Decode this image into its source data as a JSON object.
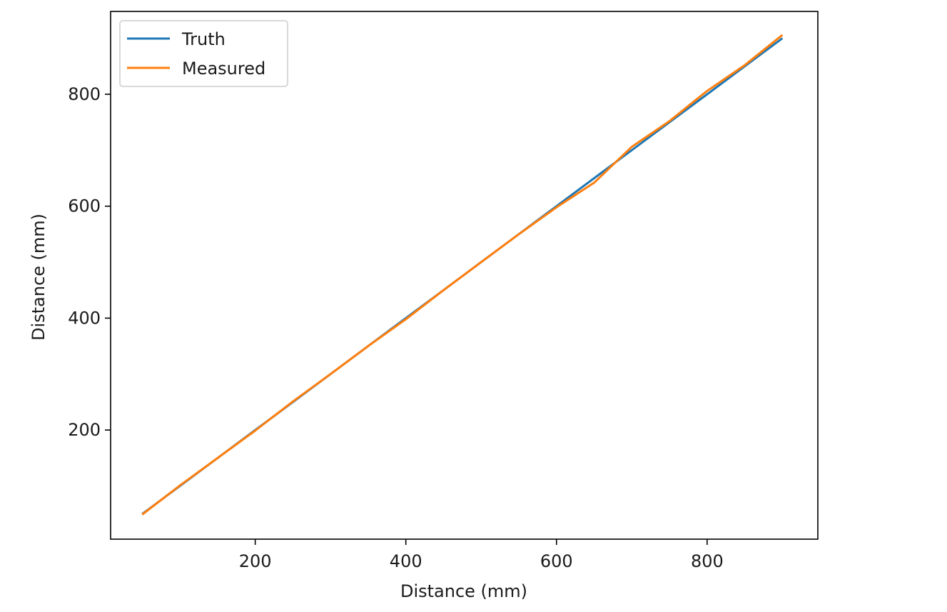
{
  "chart_data": {
    "type": "line",
    "title": "",
    "xlabel": "Distance (mm)",
    "ylabel": "Distance (mm)",
    "xlim": [
      8,
      947
    ],
    "ylim": [
      5,
      948
    ],
    "x_ticks": [
      200,
      400,
      600,
      800
    ],
    "y_ticks": [
      200,
      400,
      600,
      800
    ],
    "grid": false,
    "legend_position": "upper left",
    "series": [
      {
        "name": "Truth",
        "color": "#1f77b4",
        "x": [
          50,
          100,
          150,
          200,
          250,
          300,
          350,
          400,
          450,
          500,
          550,
          600,
          650,
          700,
          750,
          800,
          850,
          900
        ],
        "y": [
          50,
          100,
          150,
          200,
          250,
          300,
          350,
          400,
          450,
          500,
          550,
          600,
          650,
          700,
          750,
          800,
          850,
          900
        ]
      },
      {
        "name": "Measured",
        "color": "#ff7f0e",
        "x": [
          50,
          100,
          150,
          200,
          250,
          300,
          350,
          400,
          450,
          500,
          550,
          600,
          650,
          700,
          750,
          800,
          850,
          900
        ],
        "y": [
          49,
          101,
          150,
          199,
          251,
          300,
          350,
          398,
          450,
          500,
          550,
          598,
          642,
          706,
          752,
          806,
          852,
          906
        ]
      }
    ]
  }
}
